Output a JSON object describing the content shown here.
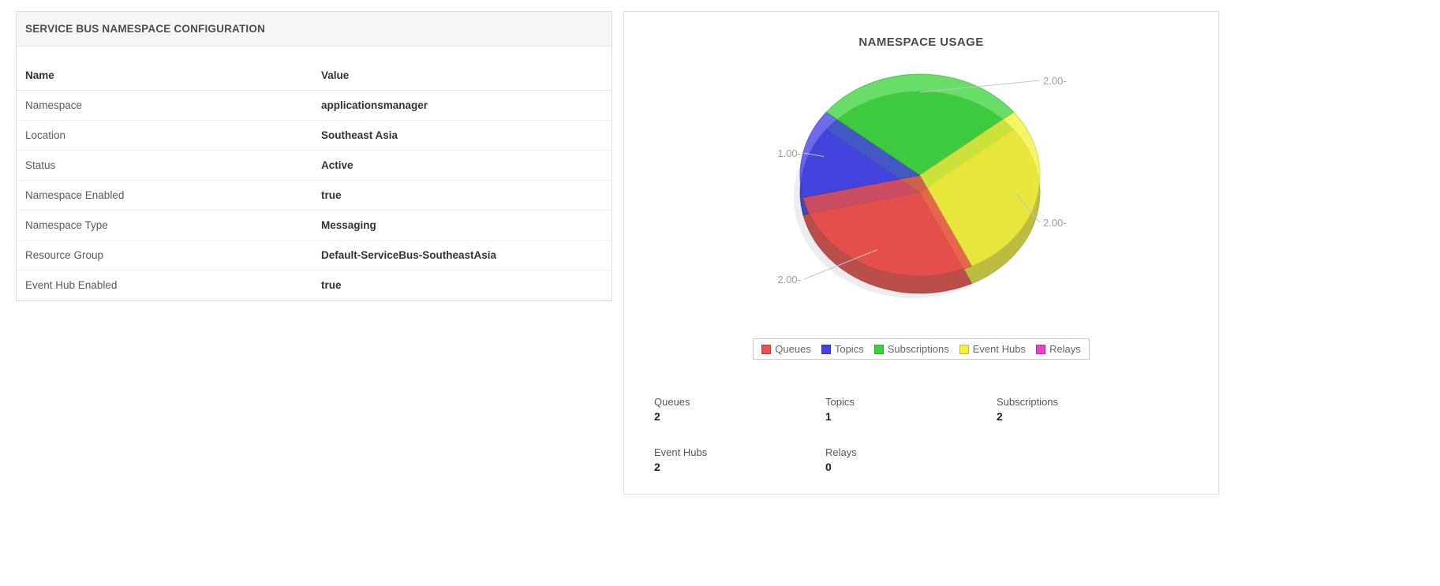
{
  "left_panel": {
    "title": "SERVICE BUS NAMESPACE CONFIGURATION",
    "columns": {
      "name": "Name",
      "value": "Value"
    },
    "rows": [
      {
        "name": "Namespace",
        "value": "applicationsmanager"
      },
      {
        "name": "Location",
        "value": "Southeast Asia"
      },
      {
        "name": "Status",
        "value": "Active"
      },
      {
        "name": "Namespace Enabled",
        "value": "true"
      },
      {
        "name": "Namespace Type",
        "value": "Messaging"
      },
      {
        "name": "Resource Group",
        "value": "Default-ServiceBus-SoutheastAsia"
      },
      {
        "name": "Event Hub Enabled",
        "value": "true"
      }
    ]
  },
  "right_panel": {
    "title": "NAMESPACE USAGE",
    "legend": [
      "Queues",
      "Topics",
      "Subscriptions",
      "Event Hubs",
      "Relays"
    ],
    "stats": [
      {
        "label": "Queues",
        "value": "2"
      },
      {
        "label": "Topics",
        "value": "1"
      },
      {
        "label": "Subscriptions",
        "value": "2"
      },
      {
        "label": "Event Hubs",
        "value": "2"
      },
      {
        "label": "Relays",
        "value": "0"
      }
    ]
  },
  "chart_data": {
    "type": "pie",
    "style": "3d",
    "title": "NAMESPACE USAGE",
    "categories": [
      "Queues",
      "Topics",
      "Subscriptions",
      "Event Hubs",
      "Relays"
    ],
    "values": [
      2,
      1,
      2,
      2,
      0
    ],
    "colors": [
      "#f0504c",
      "#4242e8",
      "#3ed43e",
      "#f2f23c",
      "#ee3ed6"
    ],
    "tick_labels": [
      "2.00-",
      "1.00-",
      "2.00-",
      "2.00-",
      null
    ],
    "legend_position": "bottom"
  }
}
